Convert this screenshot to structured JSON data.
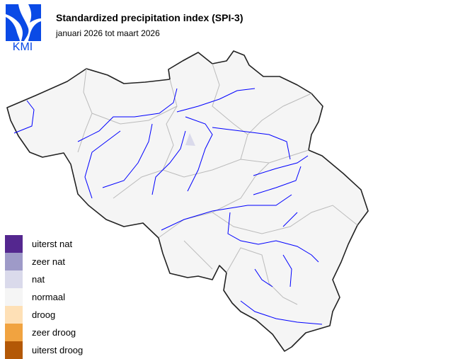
{
  "header": {
    "logo_text": "KMI",
    "title": "Standardized precipitation index (SPI-3)",
    "subtitle": "januari 2026 tot maart 2026"
  },
  "colors": {
    "logo": "#0a4ae6",
    "border": "#222222",
    "province_lines": "#bbbbbb",
    "rivers": "#0000ff",
    "land": "#f5f5f5"
  },
  "legend": [
    {
      "label": "uiterst nat",
      "color": "#54278f"
    },
    {
      "label": "zeer nat",
      "color": "#9e9ac8"
    },
    {
      "label": "nat",
      "color": "#dadaeb"
    },
    {
      "label": "normaal",
      "color": "#f5f5f5"
    },
    {
      "label": "droog",
      "color": "#fee0b6"
    },
    {
      "label": "zeer droog",
      "color": "#f1a340"
    },
    {
      "label": "uiterst droog",
      "color": "#b35806"
    }
  ]
}
